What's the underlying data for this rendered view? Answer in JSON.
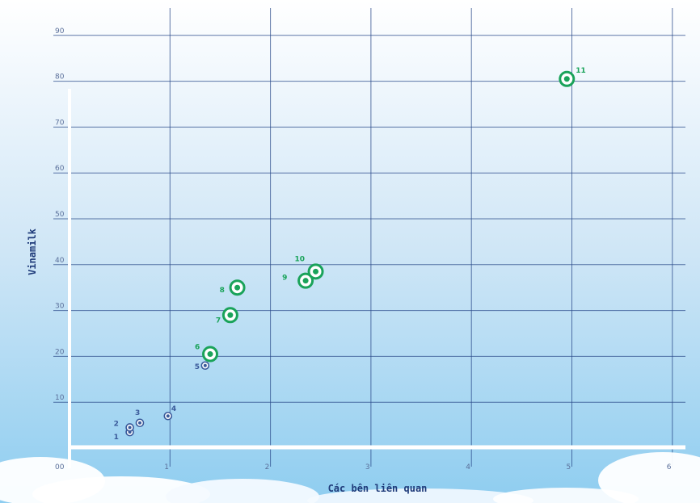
{
  "chart_data": {
    "type": "scatter",
    "title": "",
    "xlabel": "Các bên liên quan",
    "ylabel": "Vinamilk",
    "xlim": [
      0,
      6
    ],
    "ylim": [
      0,
      90
    ],
    "x_tick_labels": [
      "0",
      "1",
      "2",
      "3",
      "4",
      "5",
      "6"
    ],
    "y_tick_labels": [
      "00",
      "10",
      "20",
      "30",
      "40",
      "50",
      "60",
      "70",
      "80",
      "90"
    ],
    "grid": true,
    "colors": {
      "small": "#3a5a9a",
      "large": "#1aa35a",
      "grid": "#2a4a8a"
    },
    "points": [
      {
        "label": "1",
        "x": 0.6,
        "y": 3.5,
        "group": "small"
      },
      {
        "label": "2",
        "x": 0.6,
        "y": 4.5,
        "group": "small"
      },
      {
        "label": "3",
        "x": 0.7,
        "y": 5.5,
        "group": "small"
      },
      {
        "label": "4",
        "x": 0.98,
        "y": 7,
        "group": "small"
      },
      {
        "label": "5",
        "x": 1.35,
        "y": 18,
        "group": "small"
      },
      {
        "label": "6",
        "x": 1.4,
        "y": 20.5,
        "group": "large"
      },
      {
        "label": "7",
        "x": 1.6,
        "y": 29,
        "group": "large"
      },
      {
        "label": "8",
        "x": 1.67,
        "y": 35,
        "group": "large"
      },
      {
        "label": "9",
        "x": 2.35,
        "y": 36.5,
        "group": "large"
      },
      {
        "label": "10",
        "x": 2.45,
        "y": 38.5,
        "group": "large"
      },
      {
        "label": "11",
        "x": 4.95,
        "y": 80.5,
        "group": "large"
      }
    ]
  }
}
